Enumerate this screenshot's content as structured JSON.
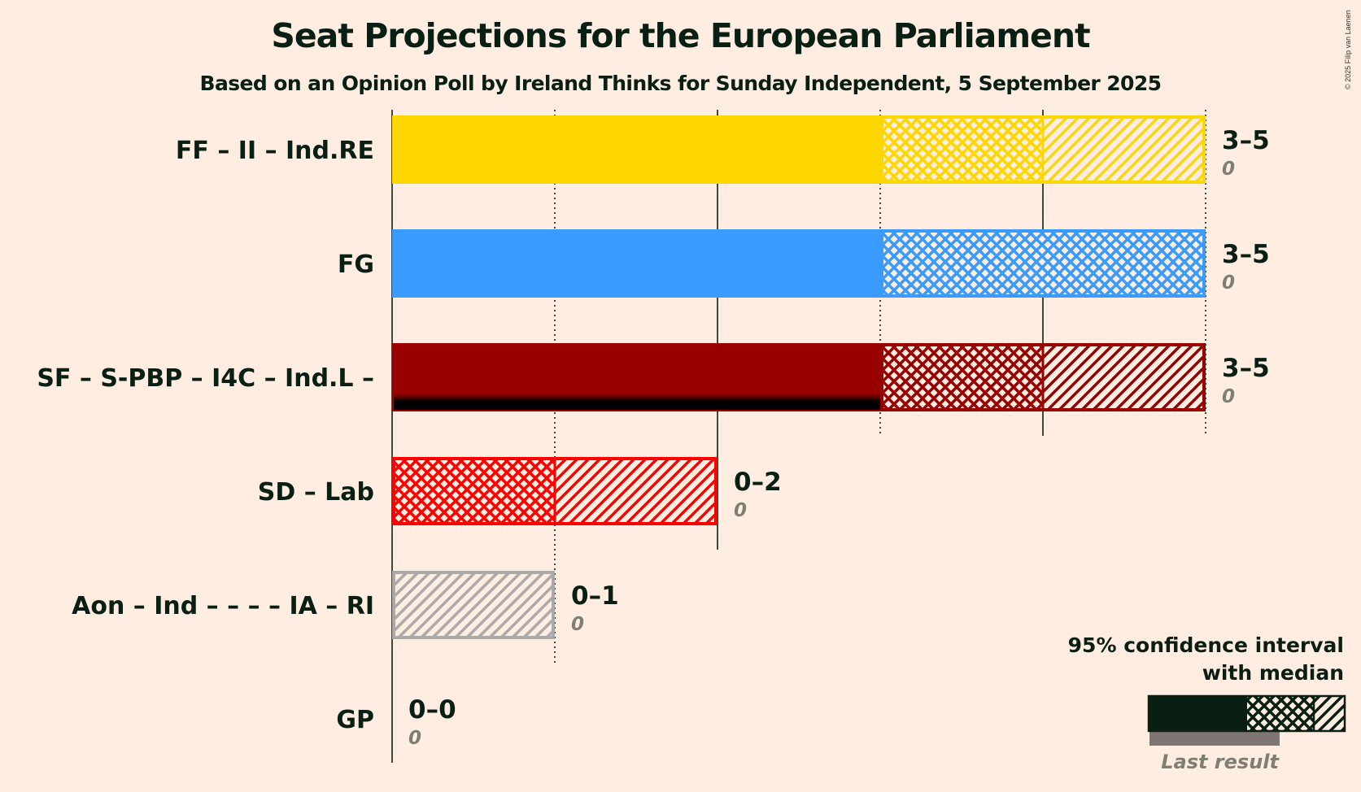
{
  "header": {
    "title": "Seat Projections for the European Parliament",
    "subtitle": "Based on an Opinion Poll by Ireland Thinks for Sunday Independent, 5 September 2025",
    "copyright": "© 2025 Filip van Laenen"
  },
  "chart_data": {
    "type": "bar",
    "orientation": "horizontal",
    "title": "Seat Projections for the European Parliament",
    "subtitle": "Based on an Opinion Poll by Ireland Thinks for Sunday Independent, 5 September 2025",
    "xlabel": "",
    "ylabel": "",
    "xlim": [
      0,
      5
    ],
    "grid": {
      "solid_at": [
        0,
        2,
        4
      ],
      "dotted_at": [
        1,
        3,
        5
      ]
    },
    "categories": [
      "FF – II – Ind.RE",
      "FG",
      "SF – S-PBP – I4C – Ind.L –",
      "SD – Lab",
      "Aon – Ind – – – – IA – RI",
      "GP"
    ],
    "series": [
      {
        "party": "FF – II – Ind.RE",
        "color": "#FFD700",
        "ci_low": 3,
        "median": 4,
        "ci_high": 5,
        "range_label": "3–5",
        "last_result": 0,
        "last_result_label": "0"
      },
      {
        "party": "FG",
        "color": "#3A9BFF",
        "ci_low": 3,
        "median": 5,
        "ci_high": 5,
        "range_label": "3–5",
        "last_result": 0,
        "last_result_label": "0"
      },
      {
        "party": "SF – S-PBP – I4C – Ind.L –",
        "color": "#990000",
        "ci_low": 3,
        "median": 4,
        "ci_high": 5,
        "range_label": "3–5",
        "last_result": 0,
        "last_result_label": "0",
        "last_result_bar_shadow": 3
      },
      {
        "party": "SD – Lab",
        "color": "#FF0000",
        "ci_low": 0,
        "median": 1,
        "ci_high": 2,
        "range_label": "0–2",
        "last_result": 0,
        "last_result_label": "0"
      },
      {
        "party": "Aon – Ind – – – – IA – RI",
        "color": "#AAAAAA",
        "ci_low": 0,
        "median": 0,
        "ci_high": 1,
        "range_label": "0–1",
        "last_result": 0,
        "last_result_label": "0"
      },
      {
        "party": "GP",
        "color": "#4CBB17",
        "ci_low": 0,
        "median": 0,
        "ci_high": 0,
        "range_label": "0–0",
        "last_result": 0,
        "last_result_label": "0"
      }
    ],
    "legend": {
      "position": "bottom-right",
      "line1": "95% confidence interval",
      "line2": "with median",
      "last_result": "Last result"
    }
  }
}
